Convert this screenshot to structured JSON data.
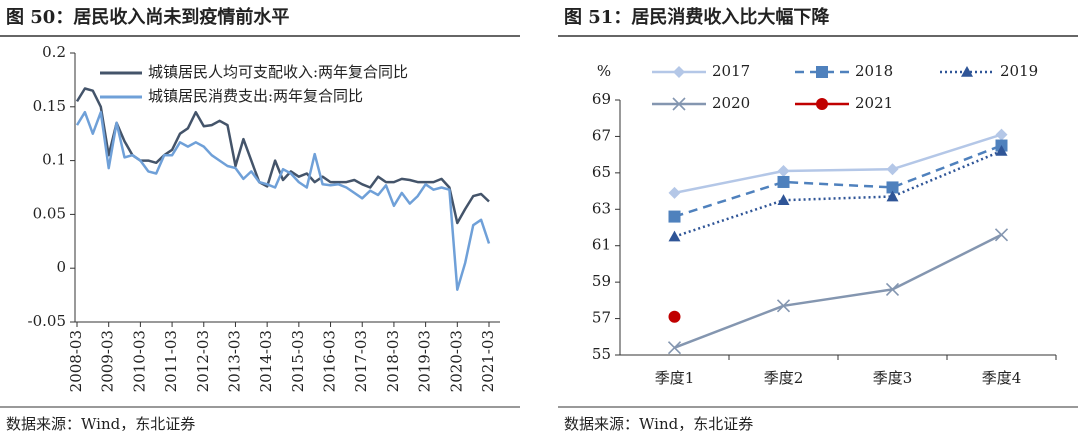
{
  "chart_data": [
    {
      "type": "line",
      "title": "图 50：居民收入尚未到疫情前水平",
      "source": "数据来源：Wind，东北证券",
      "categories": [
        "2008-03",
        null,
        null,
        null,
        "2009-03",
        null,
        null,
        null,
        "2010-03",
        null,
        null,
        null,
        "2011-03",
        null,
        null,
        null,
        "2012-03",
        null,
        null,
        null,
        "2013-03",
        null,
        null,
        null,
        "2014-03",
        null,
        null,
        null,
        "2015-03",
        null,
        null,
        null,
        "2016-03",
        null,
        null,
        null,
        "2017-03",
        null,
        null,
        null,
        "2018-03",
        null,
        null,
        null,
        "2019-03",
        null,
        null,
        null,
        "2020-03",
        null,
        null,
        null,
        "2021-03"
      ],
      "series": [
        {
          "name": "城镇居民人均可支配收入:两年复合同比",
          "color": "#44546a",
          "values": [
            0.155,
            0.167,
            0.165,
            0.15,
            0.105,
            0.135,
            0.118,
            0.105,
            0.1,
            0.1,
            0.098,
            0.105,
            0.11,
            0.125,
            0.13,
            0.145,
            0.132,
            0.133,
            0.137,
            0.133,
            0.095,
            0.12,
            0.1,
            0.08,
            0.076,
            0.1,
            0.082,
            0.09,
            0.085,
            0.088,
            0.08,
            0.085,
            0.08,
            0.08,
            0.08,
            0.082,
            0.078,
            0.075,
            0.085,
            0.08,
            0.08,
            0.083,
            0.082,
            0.08,
            0.08,
            0.08,
            0.083,
            0.075,
            0.042,
            0.055,
            0.067,
            0.069,
            0.062
          ]
        },
        {
          "name": "城镇居民消费支出:两年复合同比",
          "color": "#6fa0d8",
          "values": [
            0.133,
            0.145,
            0.125,
            0.145,
            0.093,
            0.135,
            0.103,
            0.105,
            0.1,
            0.09,
            0.088,
            0.105,
            0.105,
            0.117,
            0.113,
            0.117,
            0.113,
            0.105,
            0.1,
            0.095,
            0.093,
            0.083,
            0.09,
            0.08,
            0.078,
            0.075,
            0.092,
            0.088,
            0.08,
            0.075,
            0.106,
            0.078,
            0.077,
            0.078,
            0.075,
            0.07,
            0.065,
            0.072,
            0.068,
            0.077,
            0.058,
            0.07,
            0.06,
            0.067,
            0.078,
            0.073,
            0.075,
            0.073,
            -0.02,
            0.005,
            0.04,
            0.045,
            0.023
          ]
        }
      ],
      "ylim": [
        -0.05,
        0.2
      ],
      "yticks": [
        -0.05,
        0,
        0.05,
        0.1,
        0.15,
        0.2
      ],
      "legend": "upper left"
    },
    {
      "type": "line",
      "title": "图 51：居民消费收入比大幅下降",
      "source": "数据来源：Wind，东北证券",
      "ylabel": "%",
      "categories": [
        "季度1",
        "季度2",
        "季度3",
        "季度4"
      ],
      "series": [
        {
          "name": "2017",
          "color": "#b4c7e7",
          "marker": "diamond",
          "dash": "solid",
          "values": [
            63.9,
            65.1,
            65.2,
            67.1
          ]
        },
        {
          "name": "2018",
          "color": "#4f81bd",
          "marker": "square",
          "dash": "dashed",
          "values": [
            62.6,
            64.5,
            64.2,
            66.5
          ]
        },
        {
          "name": "2019",
          "color": "#2f5597",
          "marker": "triangle",
          "dash": "dotted",
          "values": [
            61.5,
            63.5,
            63.7,
            66.2
          ]
        },
        {
          "name": "2020",
          "color": "#8496b0",
          "marker": "x",
          "dash": "solid",
          "values": [
            55.4,
            57.7,
            58.6,
            61.6
          ]
        },
        {
          "name": "2021",
          "color": "#c00000",
          "marker": "circle",
          "dash": "solid",
          "values": [
            57.1,
            null,
            null,
            null
          ]
        }
      ],
      "ylim": [
        55,
        69
      ],
      "yticks": [
        55,
        57,
        59,
        61,
        63,
        65,
        67,
        69
      ],
      "legend": "upper center"
    }
  ]
}
